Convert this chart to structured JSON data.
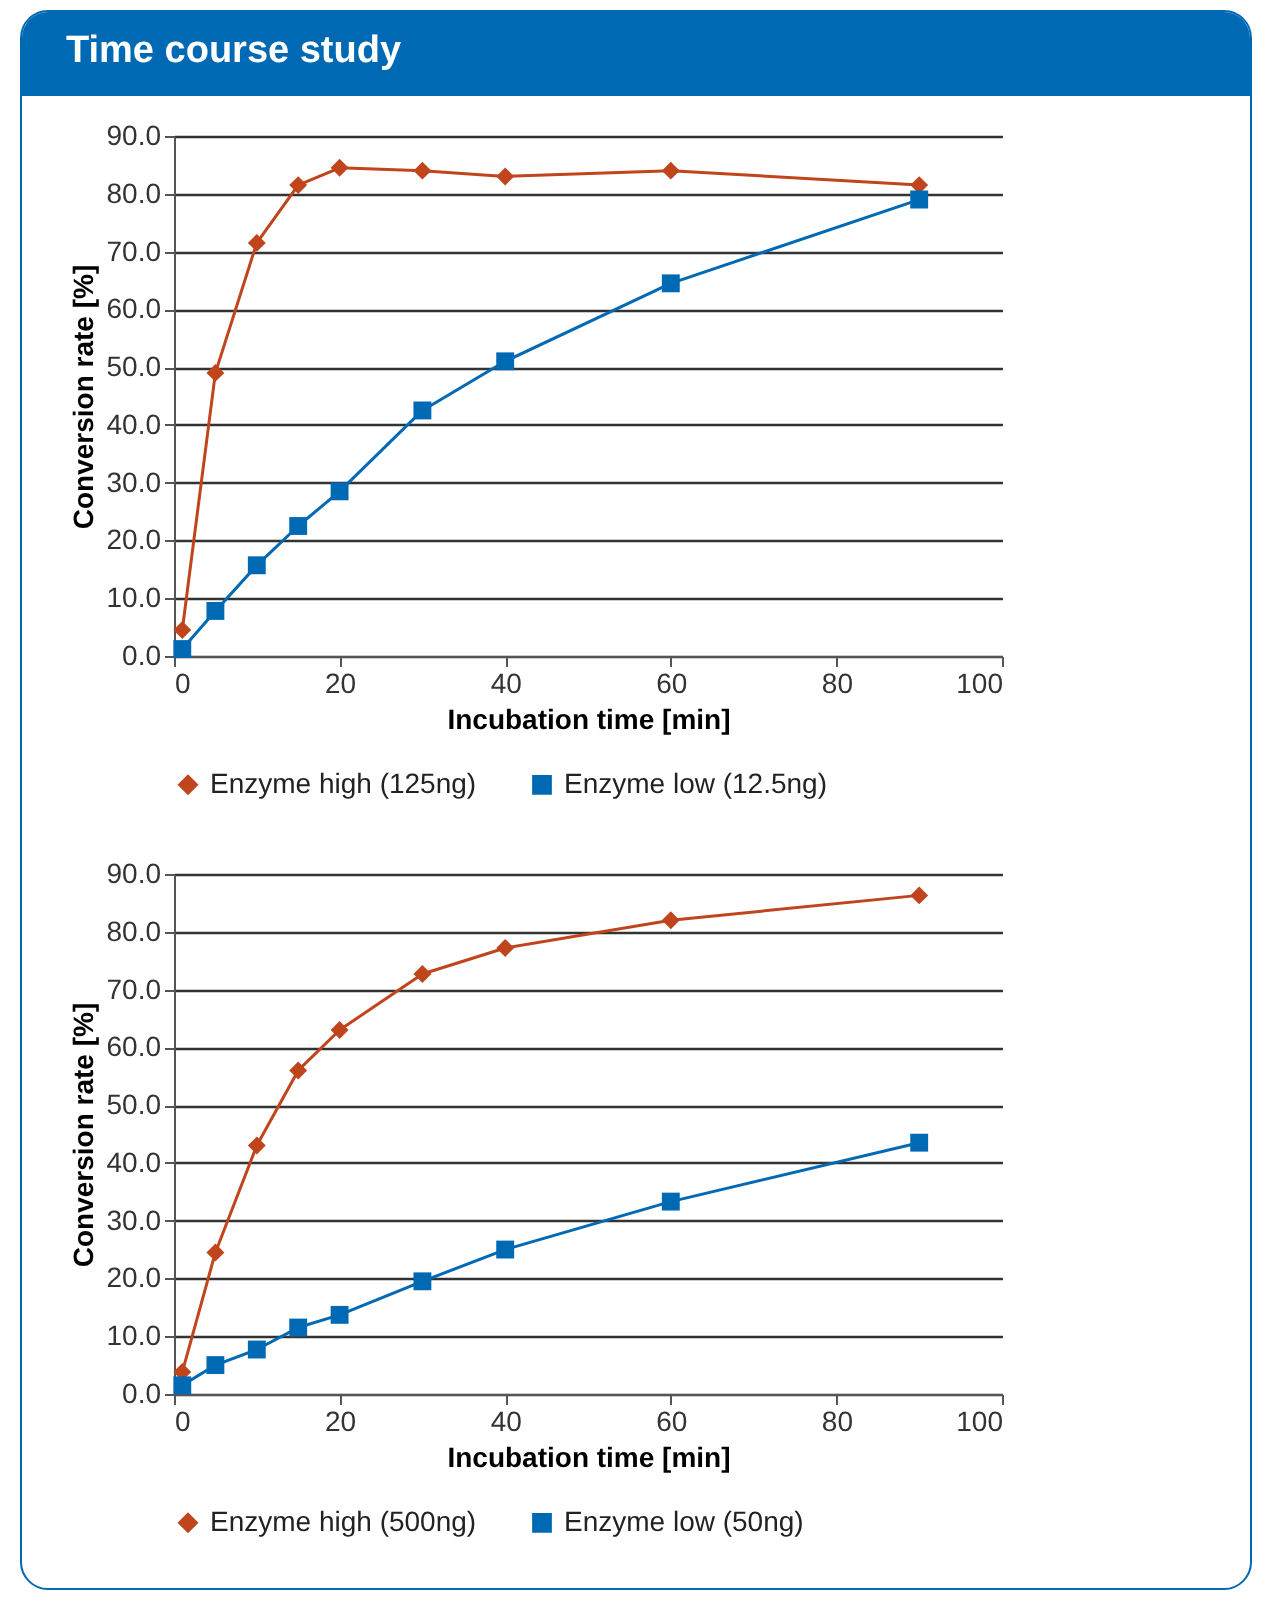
{
  "chart_data": [
    {
      "type": "line",
      "title": "Time course study",
      "xlabel": "Incubation time [min]",
      "ylabel": "Conversion rate [%]",
      "x": [
        1,
        5,
        10,
        15,
        20,
        30,
        40,
        60,
        90
      ],
      "series": [
        {
          "name": "Enzyme high (125ng)",
          "color": "#c0441c",
          "marker": "diamond",
          "values": [
            4.5,
            49,
            71.5,
            81.5,
            84.5,
            84,
            83,
            84,
            81.5
          ]
        },
        {
          "name": "Enzyme low (12.5ng)",
          "color": "#0069b4",
          "marker": "square",
          "values": [
            1.2,
            7.8,
            15.7,
            22.5,
            28.5,
            42.5,
            51,
            64.5,
            79
          ]
        }
      ],
      "xlim": [
        0,
        100
      ],
      "xticks": [
        0,
        20,
        40,
        60,
        80,
        100
      ],
      "ylim": [
        0,
        90
      ],
      "yticks": [
        {
          "value": 0,
          "label": "0.0"
        },
        {
          "value": 10,
          "label": "10.0"
        },
        {
          "value": 20,
          "label": "20.0"
        },
        {
          "value": 30,
          "label": "30.0"
        },
        {
          "value": 40,
          "label": "40.0"
        },
        {
          "value": 50,
          "label": "50.0"
        },
        {
          "value": 60,
          "label": "60.0"
        },
        {
          "value": 70,
          "label": "70.0"
        },
        {
          "value": 80,
          "label": "80.0"
        },
        {
          "value": 90,
          "label": "90.0"
        }
      ],
      "grid": "y",
      "legend": "bottom",
      "line_style": "solid"
    },
    {
      "type": "line",
      "xlabel": "Incubation time [min]",
      "ylabel": "Conversion rate [%]",
      "x": [
        1,
        5,
        10,
        15,
        20,
        30,
        40,
        60,
        90
      ],
      "series": [
        {
          "name": "Enzyme high (500ng)",
          "color": "#c0441c",
          "marker": "diamond",
          "values": [
            3.8,
            24.5,
            43,
            56,
            63,
            72.7,
            77.2,
            82,
            86.3
          ]
        },
        {
          "name": "Enzyme low (50ng)",
          "color": "#0069b4",
          "marker": "square",
          "values": [
            1.5,
            5,
            7.7,
            11.5,
            13.7,
            19.5,
            25,
            33.3,
            43.5
          ]
        }
      ],
      "xlim": [
        0,
        100
      ],
      "xticks": [
        0,
        20,
        40,
        60,
        80,
        100
      ],
      "ylim": [
        0,
        90
      ],
      "yticks": [
        {
          "value": 0,
          "label": "0.0"
        },
        {
          "value": 10,
          "label": "10.0"
        },
        {
          "value": 20,
          "label": "20.0"
        },
        {
          "value": 30,
          "label": "30.0"
        },
        {
          "value": 40,
          "label": "40.0"
        },
        {
          "value": 50,
          "label": "50.0"
        },
        {
          "value": 60,
          "label": "60.0"
        },
        {
          "value": 70,
          "label": "70.0"
        },
        {
          "value": 80,
          "label": "80.0"
        },
        {
          "value": 90,
          "label": "90.0"
        }
      ],
      "grid": "y",
      "legend": "bottom",
      "line_style": "solid"
    }
  ]
}
